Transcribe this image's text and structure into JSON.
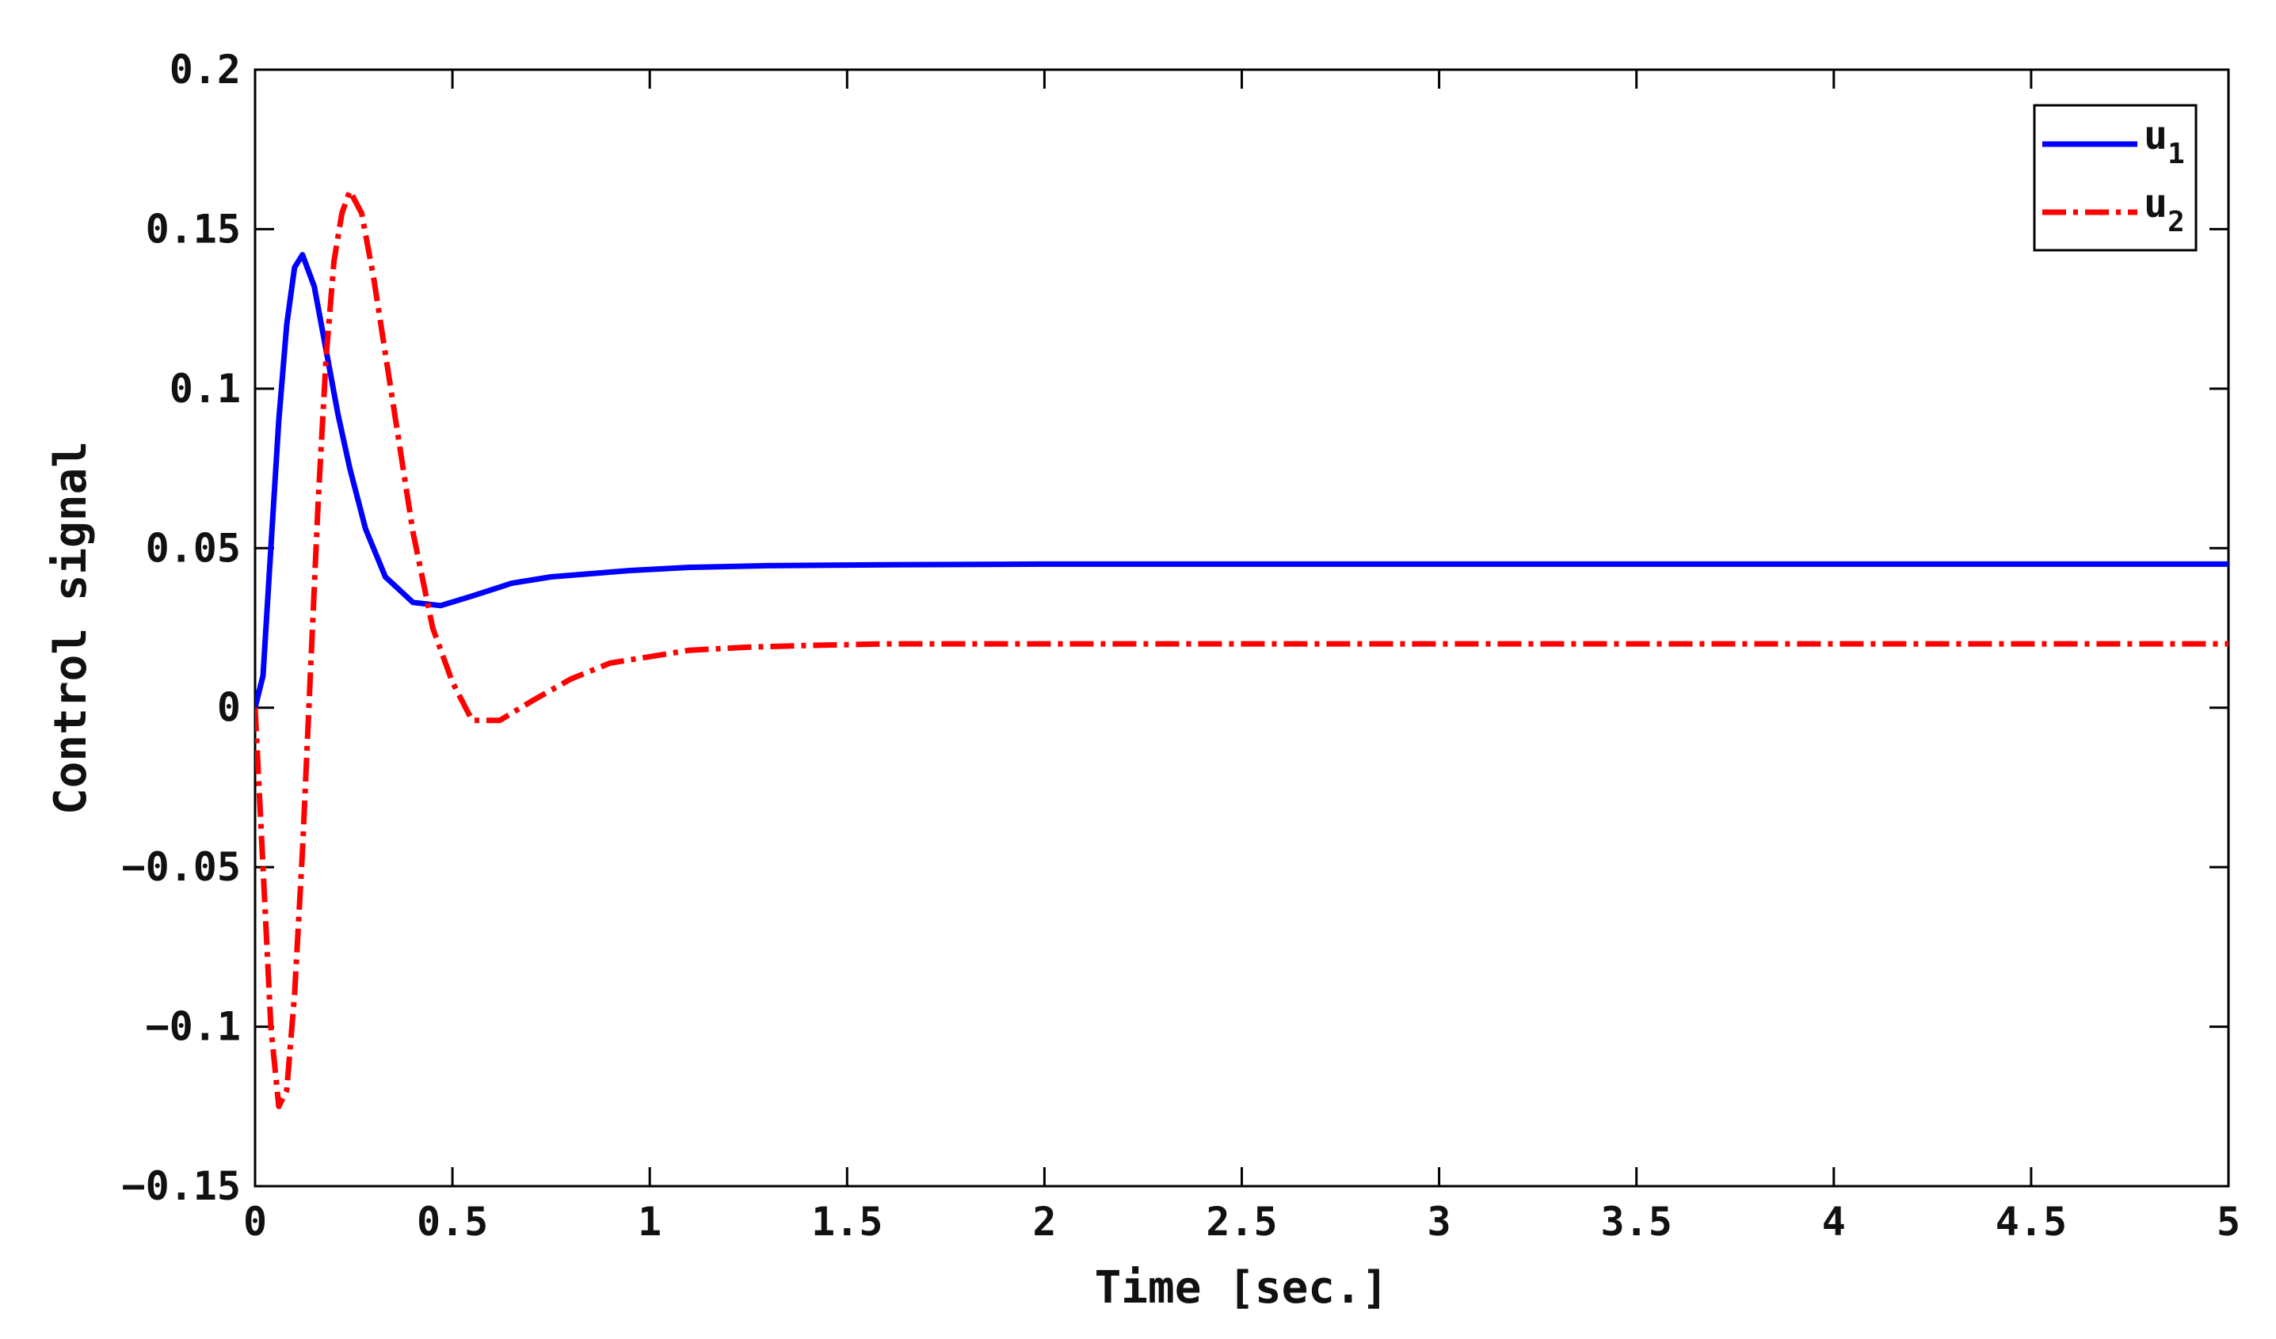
{
  "chart_data": {
    "type": "line",
    "title": "",
    "xlabel": "Time [sec.]",
    "ylabel": "Control signal",
    "xlim": [
      0,
      5
    ],
    "ylim": [
      -0.15,
      0.2
    ],
    "xticks": [
      0,
      0.5,
      1,
      1.5,
      2,
      2.5,
      3,
      3.5,
      4,
      4.5,
      5
    ],
    "yticks": [
      -0.15,
      -0.1,
      -0.05,
      0,
      0.05,
      0.1,
      0.15,
      0.2
    ],
    "xtick_labels": [
      "0",
      "0.5",
      "1",
      "1.5",
      "2",
      "2.5",
      "3",
      "3.5",
      "4",
      "4.5",
      "5"
    ],
    "ytick_labels": [
      "-0.15",
      "-0.1",
      "-0.05",
      "0",
      "0.05",
      "0.1",
      "0.15",
      "0.2"
    ],
    "grid": false,
    "legend": {
      "position": "top-right",
      "entries": [
        {
          "base": "u",
          "sub": "1"
        },
        {
          "base": "u",
          "sub": "2"
        }
      ]
    },
    "series": [
      {
        "name": "u1",
        "color": "#0000ff",
        "line_style": "solid",
        "x": [
          0,
          0.02,
          0.04,
          0.06,
          0.08,
          0.1,
          0.12,
          0.15,
          0.18,
          0.21,
          0.24,
          0.28,
          0.33,
          0.4,
          0.47,
          0.55,
          0.65,
          0.75,
          0.85,
          0.95,
          1.1,
          1.3,
          1.6,
          2.0,
          3.0,
          4.0,
          5.0
        ],
        "y": [
          0,
          0.01,
          0.05,
          0.09,
          0.12,
          0.138,
          0.142,
          0.132,
          0.112,
          0.092,
          0.075,
          0.056,
          0.041,
          0.033,
          0.032,
          0.035,
          0.039,
          0.041,
          0.042,
          0.043,
          0.044,
          0.0445,
          0.0448,
          0.045,
          0.045,
          0.045,
          0.045
        ]
      },
      {
        "name": "u2",
        "color": "#ff0000",
        "line_style": "dash-dot",
        "x": [
          0,
          0.02,
          0.04,
          0.06,
          0.08,
          0.1,
          0.12,
          0.14,
          0.16,
          0.18,
          0.2,
          0.22,
          0.24,
          0.27,
          0.3,
          0.35,
          0.4,
          0.45,
          0.5,
          0.55,
          0.62,
          0.7,
          0.8,
          0.9,
          1.0,
          1.1,
          1.25,
          1.4,
          1.6,
          2.0,
          3.0,
          4.0,
          5.0
        ],
        "y": [
          0,
          -0.05,
          -0.1,
          -0.125,
          -0.12,
          -0.09,
          -0.045,
          0.01,
          0.065,
          0.11,
          0.14,
          0.155,
          0.162,
          0.155,
          0.135,
          0.095,
          0.055,
          0.025,
          0.008,
          -0.004,
          -0.004,
          0.002,
          0.009,
          0.014,
          0.016,
          0.018,
          0.019,
          0.0195,
          0.02,
          0.02,
          0.02,
          0.02,
          0.02
        ]
      }
    ]
  }
}
